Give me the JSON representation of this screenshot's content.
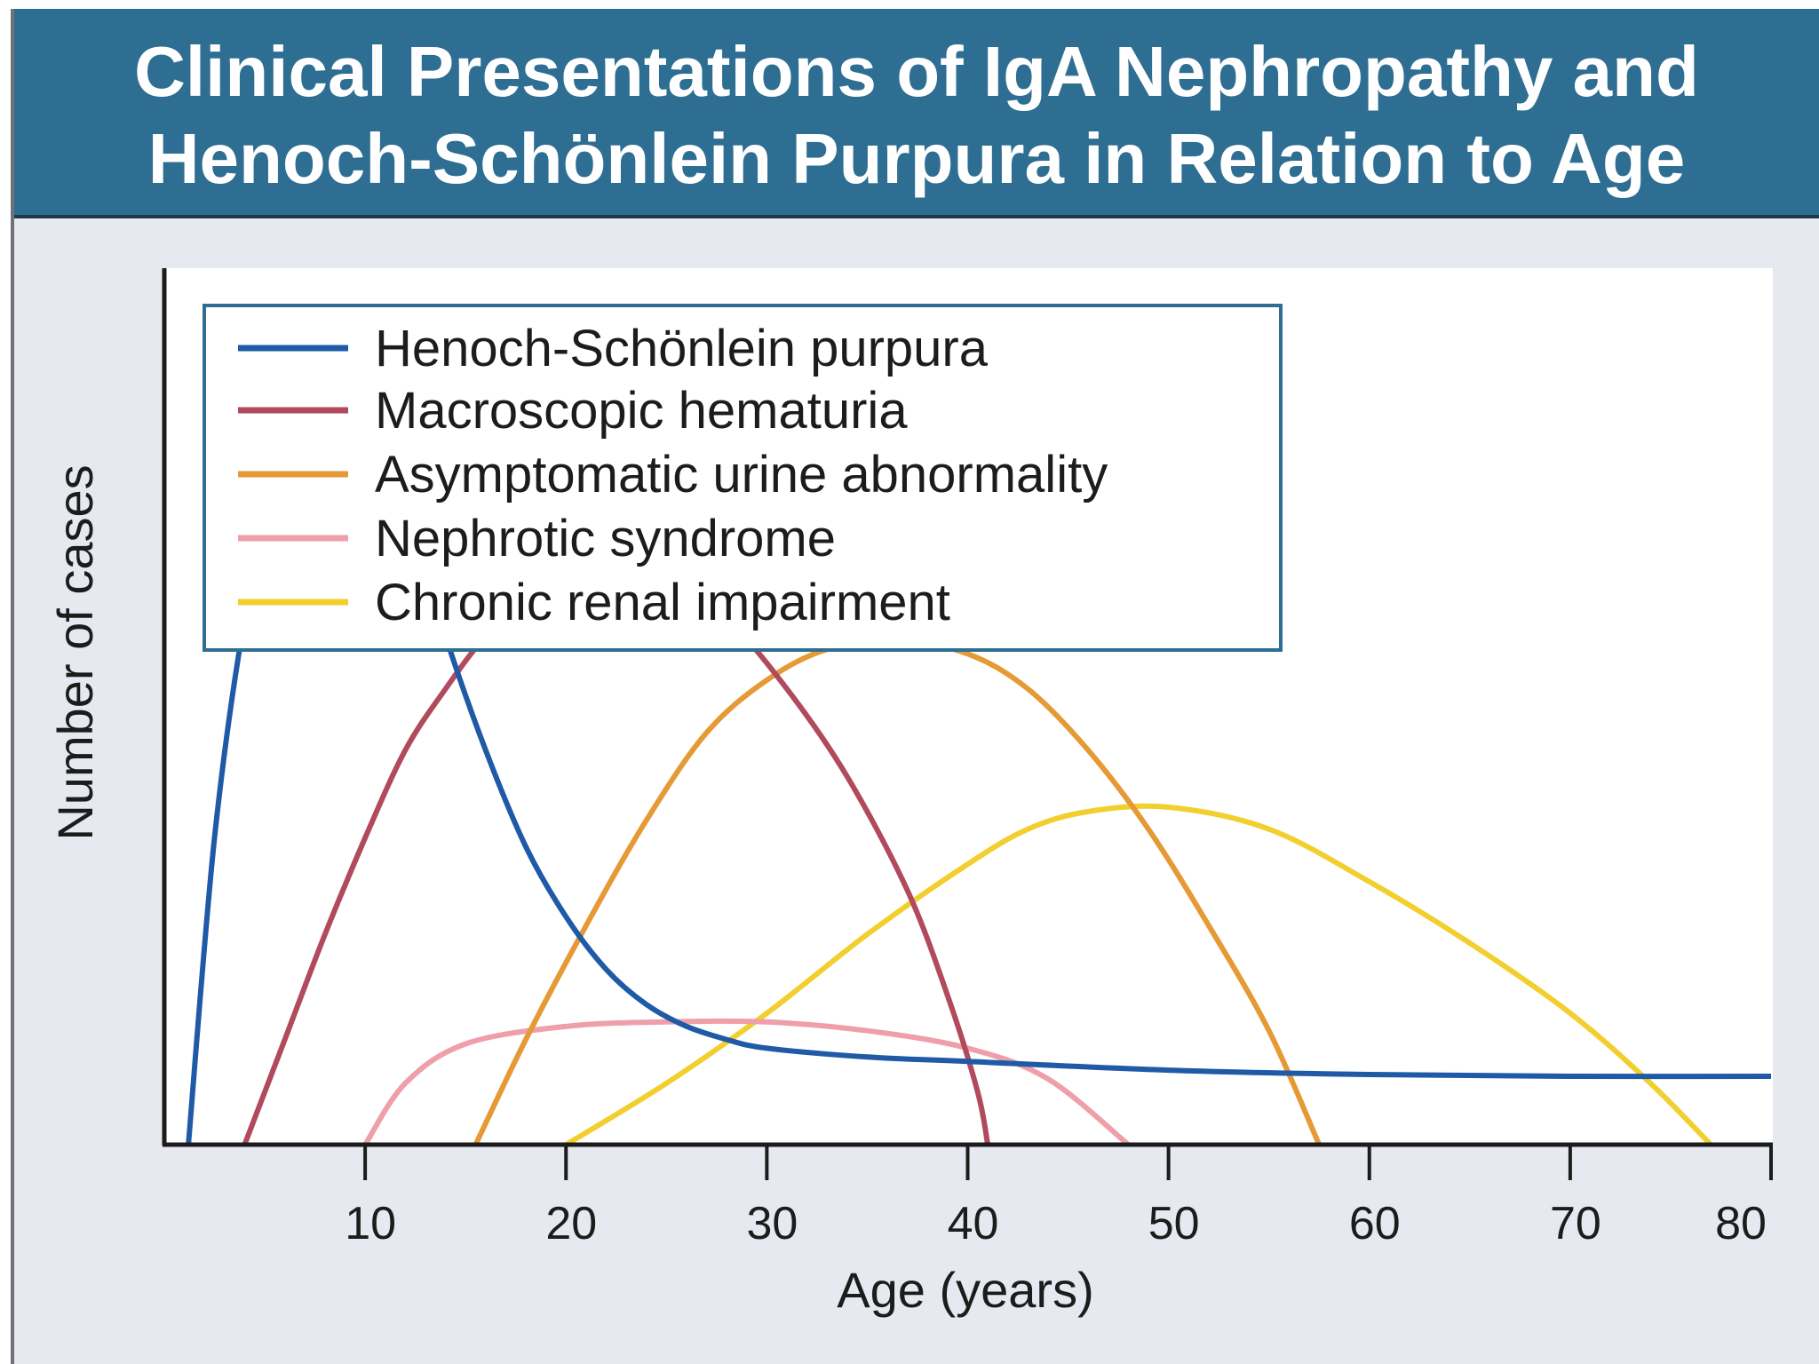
{
  "title": {
    "line1": "Clinical Presentations of IgA Nephropathy and",
    "line2": "Henoch-Schönlein Purpura in Relation to Age"
  },
  "colors": {
    "title_bg": "#2e6e92",
    "panel_bg": "#e6e9ef",
    "plot_bg": "#ffffff",
    "legend_border": "#2e6e92"
  },
  "chart_data": {
    "type": "line",
    "title": "Clinical Presentations of IgA Nephropathy and Henoch-Schönlein Purpura in Relation to Age",
    "xlabel": "Age (years)",
    "ylabel": "Number of cases",
    "xlim": [
      0,
      80
    ],
    "ylim": [
      0,
      100
    ],
    "x_ticks": [
      10,
      20,
      30,
      40,
      50,
      60,
      70,
      80
    ],
    "y_ticks_shown": false,
    "grid": false,
    "legend_position": "top-left",
    "series": [
      {
        "name": "Henoch-Schönlein purpura",
        "color": "#1f5aa6",
        "points": [
          [
            1.2,
            0
          ],
          [
            2.5,
            35
          ],
          [
            4,
            60
          ],
          [
            5.5,
            75
          ],
          [
            7,
            82
          ],
          [
            8.3,
            83.5
          ],
          [
            10,
            81
          ],
          [
            12,
            73
          ],
          [
            14,
            58
          ],
          [
            16,
            45
          ],
          [
            18,
            34
          ],
          [
            20,
            26
          ],
          [
            22,
            20
          ],
          [
            24,
            16
          ],
          [
            26,
            13.5
          ],
          [
            28,
            12
          ],
          [
            30,
            11
          ],
          [
            35,
            10
          ],
          [
            40,
            9.5
          ],
          [
            50,
            8.5
          ],
          [
            60,
            8
          ],
          [
            70,
            7.8
          ],
          [
            80,
            7.8
          ]
        ]
      },
      {
        "name": "Macroscopic hematuria",
        "color": "#b04a5c",
        "points": [
          [
            4,
            0
          ],
          [
            6,
            12
          ],
          [
            8,
            24
          ],
          [
            10,
            35
          ],
          [
            12,
            45
          ],
          [
            14,
            52
          ],
          [
            16,
            58
          ],
          [
            18,
            62
          ],
          [
            20,
            64.5
          ],
          [
            22.5,
            65.5
          ],
          [
            25,
            64.5
          ],
          [
            28,
            60
          ],
          [
            31,
            52
          ],
          [
            34,
            42
          ],
          [
            37,
            29
          ],
          [
            39,
            17
          ],
          [
            40.5,
            6
          ],
          [
            41,
            0
          ]
        ]
      },
      {
        "name": "Asymptomatic urine abnormality",
        "color": "#e59a35",
        "points": [
          [
            15.5,
            0
          ],
          [
            18,
            12
          ],
          [
            21,
            25
          ],
          [
            24,
            37
          ],
          [
            27,
            47
          ],
          [
            30,
            53
          ],
          [
            33,
            56.5
          ],
          [
            36.5,
            57.5
          ],
          [
            40,
            56
          ],
          [
            43,
            52
          ],
          [
            46,
            45
          ],
          [
            49,
            36
          ],
          [
            52,
            25
          ],
          [
            55,
            13
          ],
          [
            57.5,
            0
          ]
        ]
      },
      {
        "name": "Nephrotic syndrome",
        "color": "#ee9faa",
        "points": [
          [
            10,
            0
          ],
          [
            12,
            7
          ],
          [
            15,
            11.5
          ],
          [
            20,
            13.5
          ],
          [
            25,
            14
          ],
          [
            30,
            14
          ],
          [
            35,
            13
          ],
          [
            40,
            11
          ],
          [
            44,
            7.5
          ],
          [
            48,
            0
          ]
        ]
      },
      {
        "name": "Chronic renal impairment",
        "color": "#f2cf2e",
        "points": [
          [
            20,
            0
          ],
          [
            25,
            7
          ],
          [
            30,
            15
          ],
          [
            35,
            24
          ],
          [
            40,
            32
          ],
          [
            43,
            36
          ],
          [
            46,
            38
          ],
          [
            50,
            38.5
          ],
          [
            55,
            36
          ],
          [
            60,
            30
          ],
          [
            65,
            23
          ],
          [
            70,
            15
          ],
          [
            74,
            7
          ],
          [
            77,
            0
          ]
        ]
      }
    ]
  }
}
